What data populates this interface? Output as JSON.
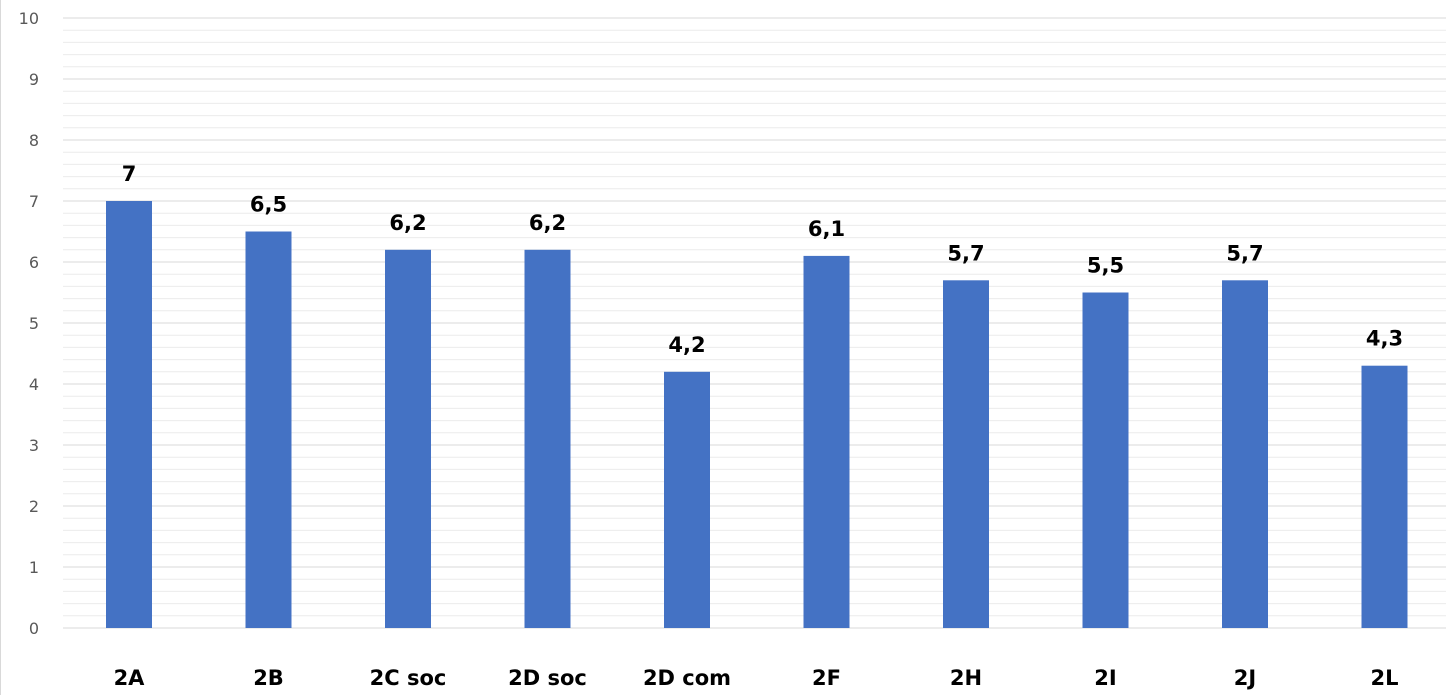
{
  "chart_data": {
    "type": "bar",
    "title": "",
    "xlabel": "",
    "ylabel": "",
    "categories": [
      "2A",
      "2B",
      "2C soc",
      "2D soc",
      "2D com",
      "2F",
      "2H",
      "2I",
      "2J",
      "2L"
    ],
    "series": [
      {
        "values": [
          7,
          6.5,
          6.2,
          6.2,
          4.2,
          6.1,
          5.7,
          5.5,
          5.7,
          4.3
        ],
        "data_labels": [
          "7",
          "6,5",
          "6,2",
          "6,2",
          "4,2",
          "6,1",
          "5,7",
          "5,5",
          "5,7",
          "4,3"
        ],
        "color": "#4472c4"
      }
    ],
    "ylim": [
      0,
      10
    ],
    "yticks": [
      0,
      1,
      2,
      3,
      4,
      5,
      6,
      7,
      8,
      9,
      10
    ],
    "grid": "major and minor horizontal",
    "legend": "none",
    "colors": {
      "bar": "#4472c4",
      "major_grid": "#d9d9d9",
      "minor_grid": "#ececec",
      "axis_text": "#595959"
    }
  }
}
